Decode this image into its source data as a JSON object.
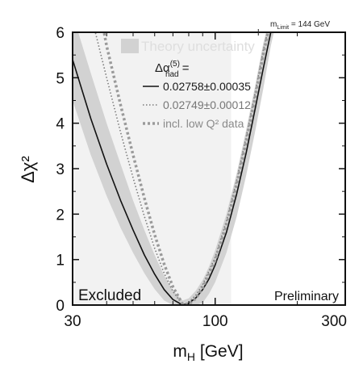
{
  "chart_data": {
    "type": "line",
    "x_scale": "log",
    "xlabel_main": "m",
    "xlabel_sub": "H",
    "xlabel_rest": " [GeV]",
    "ylabel": "Δχ²",
    "xlim": [
      30,
      300
    ],
    "ylim": [
      0,
      6
    ],
    "x_ticks": [
      30,
      100,
      300
    ],
    "y_ticks": [
      0,
      1,
      2,
      3,
      4,
      5,
      6
    ],
    "excluded_region": {
      "x": [
        30,
        114.4
      ],
      "label": "Excluded"
    },
    "preliminary_label": "Preliminary",
    "limit_label_main": "m",
    "limit_label_sub": "Limit",
    "limit_label_value": " = 144 GeV",
    "limit_value": 144,
    "legend": {
      "theory_label": "Theory uncertainty",
      "header_main": "Δα",
      "header_sub": "had",
      "header_sup": "(5)",
      "header_eq": " =",
      "entries": [
        {
          "label": "0.02758±0.00035",
          "style": "solid"
        },
        {
          "label": "0.02749±0.00012",
          "style": "dotted"
        },
        {
          "label": "incl. low Q² data",
          "style": "dotted-thick"
        }
      ]
    },
    "series": [
      {
        "style": "solid",
        "x": [
          30,
          35,
          40,
          45,
          50,
          55,
          60,
          65,
          70,
          76,
          80,
          85,
          90,
          95,
          100,
          110,
          120,
          130,
          140,
          150,
          160,
          170
        ],
        "y": [
          5.4,
          4.1,
          3.1,
          2.3,
          1.65,
          1.1,
          0.68,
          0.34,
          0.12,
          0.0,
          0.04,
          0.16,
          0.34,
          0.58,
          0.88,
          1.6,
          2.45,
          3.35,
          4.3,
          5.2,
          6.0,
          6.5
        ]
      },
      {
        "style": "dotted",
        "x": [
          35,
          40,
          45,
          50,
          55,
          60,
          65,
          70,
          76,
          80,
          85,
          90,
          100,
          110,
          120,
          130,
          140,
          150,
          160
        ],
        "y": [
          6.4,
          5.0,
          3.8,
          2.8,
          1.95,
          1.25,
          0.7,
          0.3,
          0.0,
          0.06,
          0.22,
          0.45,
          1.05,
          1.85,
          2.75,
          3.7,
          4.65,
          5.6,
          6.3
        ]
      },
      {
        "style": "dotted-thick",
        "x": [
          38,
          40,
          45,
          50,
          55,
          60,
          65,
          70,
          76,
          80,
          85,
          90,
          100,
          110,
          120,
          130,
          140,
          150,
          160
        ],
        "y": [
          6.4,
          5.7,
          4.4,
          3.3,
          2.35,
          1.55,
          0.9,
          0.4,
          0.02,
          0.02,
          0.15,
          0.38,
          0.98,
          1.75,
          2.65,
          3.6,
          4.55,
          5.5,
          6.3
        ]
      }
    ],
    "band": {
      "x": [
        30,
        35,
        40,
        45,
        50,
        55,
        60,
        65,
        70,
        76,
        80,
        85,
        90,
        95,
        100,
        110,
        120,
        130,
        140,
        150,
        160,
        170
      ],
      "lower": [
        4.5,
        3.3,
        2.4,
        1.7,
        1.15,
        0.7,
        0.35,
        0.1,
        0.0,
        0.0,
        0.0,
        0.0,
        0.05,
        0.25,
        0.5,
        1.15,
        1.95,
        2.85,
        3.8,
        4.75,
        5.7,
        6.4
      ],
      "upper": [
        6.4,
        5.1,
        4.0,
        3.1,
        2.3,
        1.65,
        1.1,
        0.65,
        0.32,
        0.1,
        0.15,
        0.32,
        0.55,
        0.85,
        1.2,
        2.0,
        2.9,
        3.85,
        4.8,
        5.75,
        6.4,
        6.6
      ]
    },
    "colors": {
      "band": "#d2d2d2",
      "excluded": "#f2f2f2",
      "solid": "#111111",
      "dotted": "#7a7a7a",
      "dotted_thick": "#9a9a9a"
    }
  }
}
